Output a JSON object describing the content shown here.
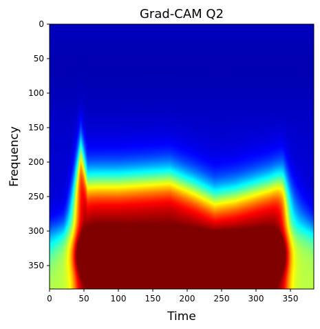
{
  "chart_data": {
    "type": "heatmap",
    "title": "Grad-CAM Q2",
    "xlabel": "Time",
    "ylabel": "Frequency",
    "xlim": [
      0,
      384
    ],
    "ylim": [
      384,
      0
    ],
    "y_axis_inverted": true,
    "grid": false,
    "colormap": "jet",
    "x_ticks": [
      0,
      50,
      100,
      150,
      200,
      250,
      300,
      350
    ],
    "y_ticks": [
      0,
      50,
      100,
      150,
      200,
      250,
      300,
      350
    ],
    "x_tick_labels": [
      "0",
      "50",
      "100",
      "150",
      "200",
      "250",
      "300",
      "350"
    ],
    "y_tick_labels": [
      "0",
      "50",
      "100",
      "150",
      "200",
      "250",
      "300",
      "350"
    ],
    "activation_profile": {
      "description_units": "frequency bins; intensity 0-1 on jet colormap",
      "x_onset": 38,
      "x_offset": 345,
      "upper_boundary_frequency": {
        "x": [
          0,
          20,
          45,
          55,
          100,
          175,
          210,
          240,
          270,
          320,
          340,
          384
        ],
        "y": [
          330,
          300,
          180,
          230,
          230,
          225,
          240,
          255,
          250,
          235,
          225,
          300
        ]
      },
      "peak_band_frequency": 335,
      "peak_intensity": 1.0,
      "strongest_region_x": [
        50,
        100
      ]
    }
  }
}
